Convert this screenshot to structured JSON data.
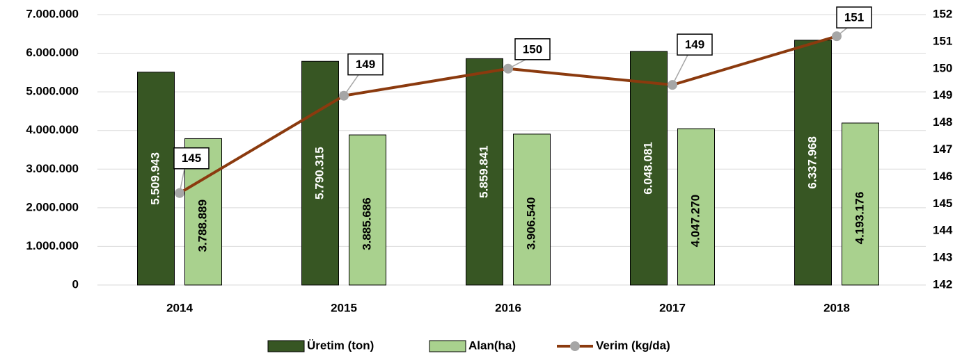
{
  "chart_data": {
    "type": "bar_line",
    "categories": [
      "2014",
      "2015",
      "2016",
      "2017",
      "2018"
    ],
    "series": [
      {
        "name": "Üretim (ton)",
        "type": "bar",
        "color": "#375623",
        "values": [
          5509943,
          5790315,
          5859841,
          6048081,
          6337968
        ],
        "value_labels": [
          "5.509.943",
          "5.790.315",
          "5.859.841",
          "6.048.081",
          "6.337.968"
        ]
      },
      {
        "name": "Alan(ha)",
        "type": "bar",
        "color": "#a9d18e",
        "values": [
          3788889,
          3885686,
          3906540,
          4047270,
          4193176
        ],
        "value_labels": [
          "3.788.889",
          "3.885.686",
          "3.906.540",
          "4.047.270",
          "4.193.176"
        ]
      },
      {
        "name": "Verim (kg/da)",
        "type": "line",
        "axis": "y2",
        "color": "#8b3a0e",
        "marker_color": "#a6a6a6",
        "values": [
          145.4,
          149.0,
          150.0,
          149.4,
          151.2
        ],
        "value_labels": [
          "145",
          "149",
          "150",
          "149",
          "151"
        ]
      }
    ],
    "ylim": [
      0,
      7000000
    ],
    "yticks": [
      0,
      {
        "value": 1000000,
        "label": "1.000.000"
      },
      {
        "value": 2000000,
        "label": "2.000.000"
      },
      {
        "value": 3000000,
        "label": "3.000.000"
      },
      {
        "value": 4000000,
        "label": "4.000.000"
      },
      {
        "value": 5000000,
        "label": "5.000.000"
      },
      {
        "value": 6000000,
        "label": "6.000.000"
      },
      {
        "value": 7000000,
        "label": "7.000.000"
      }
    ],
    "y2lim": [
      142,
      152
    ],
    "y2ticks": [
      142,
      143,
      144,
      145,
      146,
      147,
      148,
      149,
      150,
      151,
      152
    ],
    "grid": true,
    "legend": "bottom"
  }
}
